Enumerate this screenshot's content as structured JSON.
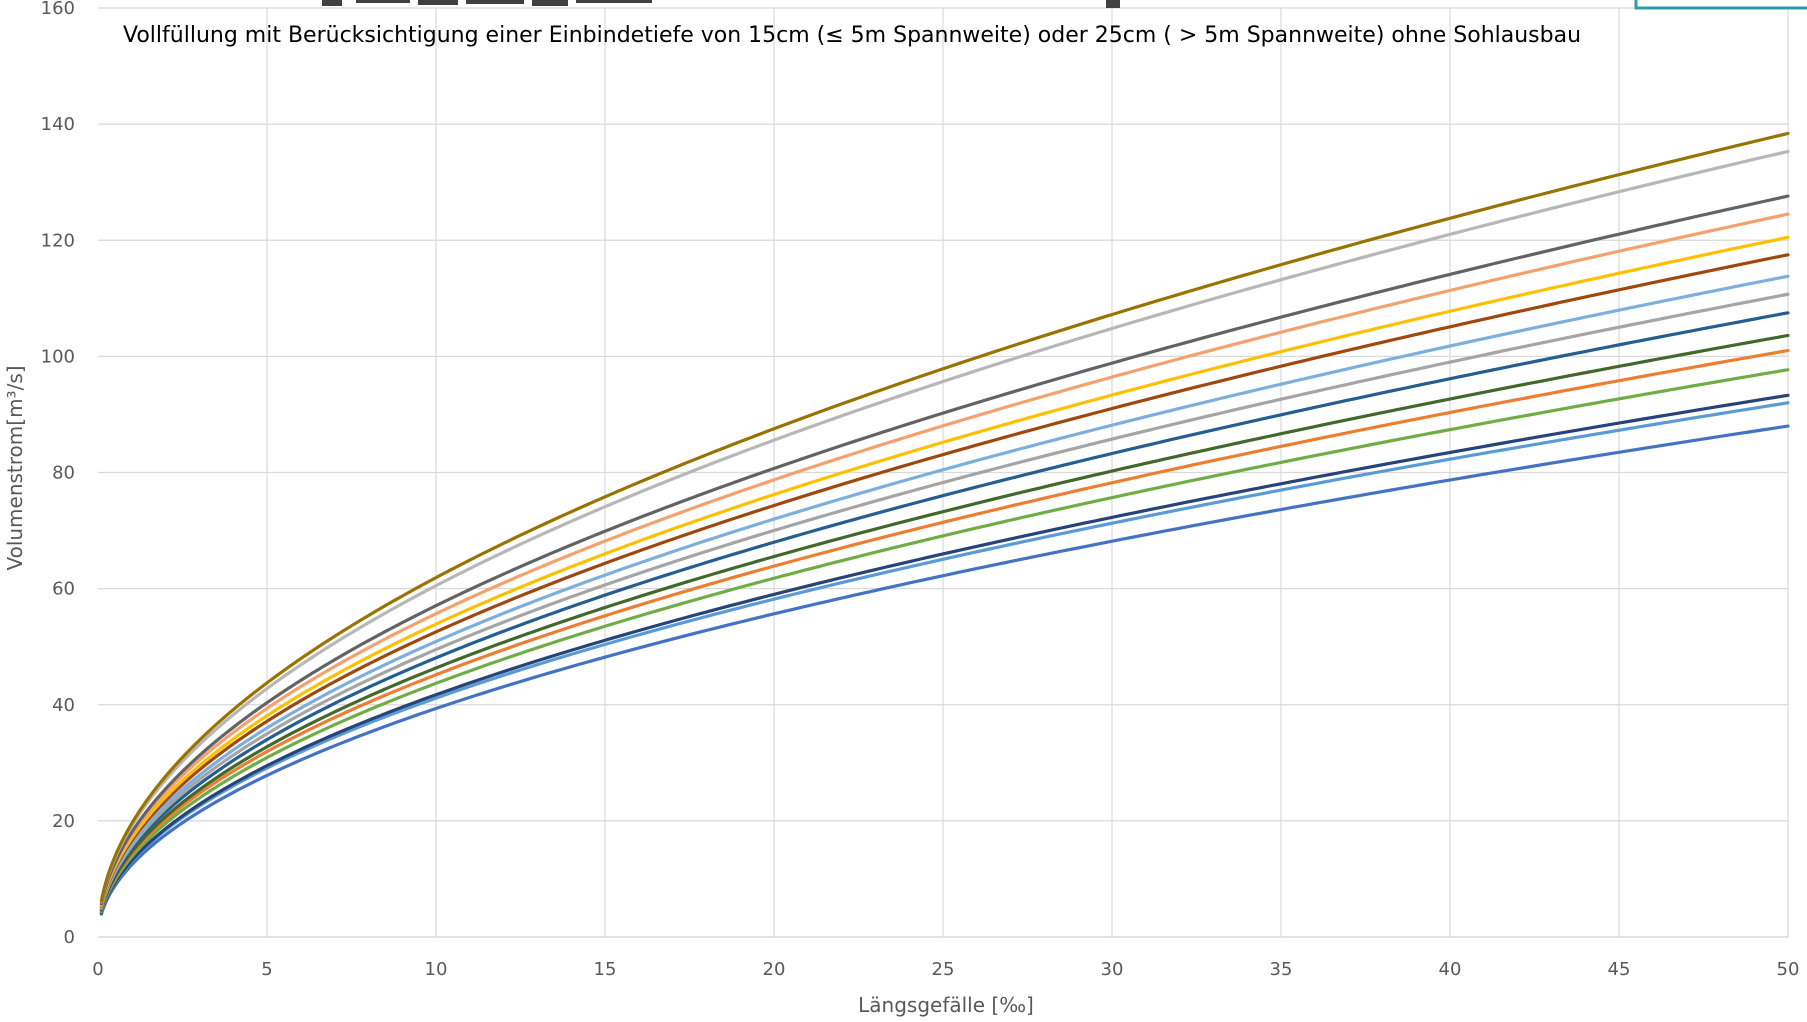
{
  "chart_data": {
    "type": "line",
    "subtitle": "Vollfüllung mit Berücksichtigung einer Einbindetiefe von 15cm (≤ 5m Spannweite) oder 25cm ( > 5m Spannweite) ohne Sohlausbau",
    "xlabel": "Längsgefälle [‰]",
    "ylabel": "Volumenstrom[m³/s]",
    "xlim": [
      0,
      50
    ],
    "ylim": [
      0,
      160
    ],
    "x_ticks": [
      "0",
      "5",
      "10",
      "15",
      "20",
      "25",
      "30",
      "35",
      "40",
      "45",
      "50"
    ],
    "y_ticks": [
      "0",
      "20",
      "40",
      "60",
      "80",
      "100",
      "120",
      "140",
      "160"
    ],
    "grid": true,
    "legend": "none",
    "series": [
      {
        "color": "#4472C4",
        "values": [
          [
            0.1,
            3.9
          ],
          [
            50,
            88.0
          ]
        ]
      },
      {
        "color": "#5B9BD5",
        "values": [
          [
            0.1,
            4.1
          ],
          [
            50,
            92.0
          ]
        ]
      },
      {
        "color": "#264478",
        "values": [
          [
            0.1,
            4.2
          ],
          [
            50,
            93.3
          ]
        ]
      },
      {
        "color": "#70AD47",
        "values": [
          [
            0.1,
            4.4
          ],
          [
            50,
            97.7
          ]
        ]
      },
      {
        "color": "#ED7D31",
        "values": [
          [
            0.1,
            4.5
          ],
          [
            50,
            101.0
          ]
        ]
      },
      {
        "color": "#43682B",
        "values": [
          [
            0.1,
            4.6
          ],
          [
            50,
            103.6
          ]
        ]
      },
      {
        "color": "#255E91",
        "values": [
          [
            0.1,
            4.8
          ],
          [
            50,
            107.5
          ]
        ]
      },
      {
        "color": "#A5A5A5",
        "values": [
          [
            0.1,
            5.0
          ],
          [
            50,
            110.7
          ]
        ]
      },
      {
        "color": "#7CAFDD",
        "values": [
          [
            0.1,
            5.1
          ],
          [
            50,
            113.8
          ]
        ]
      },
      {
        "color": "#9E480E",
        "values": [
          [
            0.1,
            5.3
          ],
          [
            50,
            117.5
          ]
        ]
      },
      {
        "color": "#FFC000",
        "values": [
          [
            0.1,
            5.4
          ],
          [
            50,
            120.5
          ]
        ]
      },
      {
        "color": "#F4A26D",
        "values": [
          [
            0.1,
            5.6
          ],
          [
            50,
            124.5
          ]
        ]
      },
      {
        "color": "#636363",
        "values": [
          [
            0.1,
            5.7
          ],
          [
            50,
            127.6
          ]
        ]
      },
      {
        "color": "#B7B7B7",
        "values": [
          [
            0.1,
            6.1
          ],
          [
            50,
            135.3
          ]
        ]
      },
      {
        "color": "#997300",
        "values": [
          [
            0.1,
            6.2
          ],
          [
            50,
            138.4
          ]
        ]
      }
    ]
  }
}
